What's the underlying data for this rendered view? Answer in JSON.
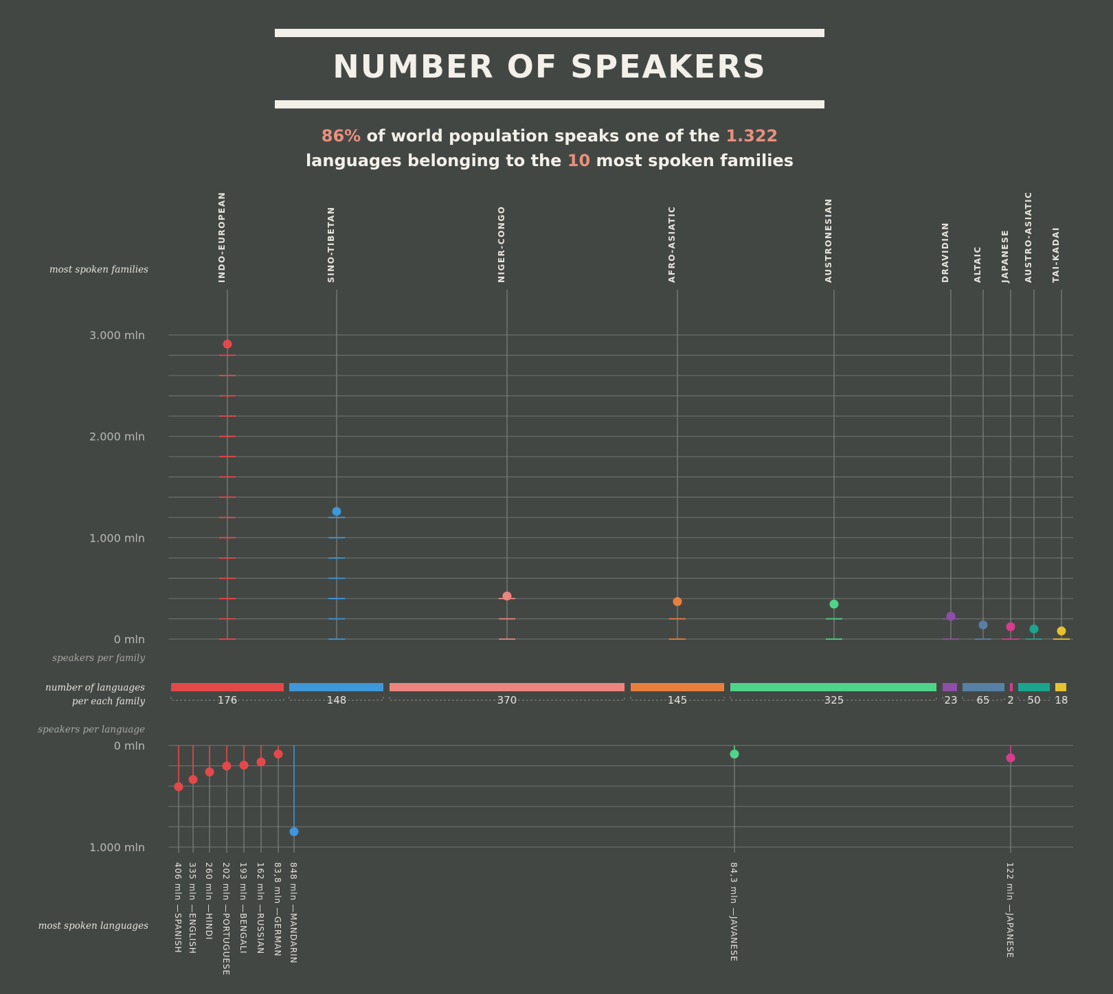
{
  "title": "NUMBER OF SPEAKERS",
  "subtitle": {
    "pct": "86%",
    "part1": " of world population speaks one of the ",
    "languages": "1.322",
    "part2": "languages belonging to the ",
    "families": "10",
    "part3": " most spoken families"
  },
  "labels": {
    "most_spoken_families": "most spoken families",
    "speakers_per_family": "speakers per family",
    "number_of_languages_line1": "number of languages",
    "number_of_languages_line2": "per each family",
    "speakers_per_language": "speakers per language",
    "most_spoken_languages": "most spoken languages"
  },
  "chart_data": {
    "type": "scatter",
    "title": "NUMBER OF SPEAKERS",
    "top_axis": {
      "ylabel": "speakers per family",
      "ylim": [
        0,
        3000
      ],
      "ticks": [
        {
          "value": 0,
          "label": "0 mln"
        },
        {
          "value": 1000,
          "label": "1.000 mln"
        },
        {
          "value": 2000,
          "label": "2.000 mln"
        },
        {
          "value": 3000,
          "label": "3.000 mln"
        }
      ]
    },
    "bottom_axis": {
      "ylabel": "speakers per language",
      "ylim": [
        0,
        1000
      ],
      "ticks": [
        {
          "value": 0,
          "label": "0 mln"
        },
        {
          "value": 1000,
          "label": "1.000 mln"
        }
      ]
    },
    "families": [
      {
        "name": "INDO-EUROPEAN",
        "speakers": 2910,
        "languages": 176,
        "color": "#e5484a"
      },
      {
        "name": "SINO-TIBETAN",
        "speakers": 1260,
        "languages": 148,
        "color": "#3d97d8"
      },
      {
        "name": "NIGER-CONGO",
        "speakers": 425,
        "languages": 370,
        "color": "#ec8480"
      },
      {
        "name": "AFRO-ASIATIC",
        "speakers": 370,
        "languages": 145,
        "color": "#e8803d"
      },
      {
        "name": "AUSTRONESIAN",
        "speakers": 345,
        "languages": 325,
        "color": "#4fd489"
      },
      {
        "name": "DRAVIDIAN",
        "speakers": 225,
        "languages": 23,
        "color": "#8d4fa8"
      },
      {
        "name": "ALTAIC",
        "speakers": 140,
        "languages": 65,
        "color": "#5880a5"
      },
      {
        "name": "JAPANESE",
        "speakers": 122,
        "languages": 2,
        "color": "#d73d8e"
      },
      {
        "name": "AUSTRO-ASIATIC",
        "speakers": 100,
        "languages": 50,
        "color": "#1ba58e"
      },
      {
        "name": "TAI-KADAI",
        "speakers": 80,
        "languages": 18,
        "color": "#e7c22f"
      }
    ],
    "languages": [
      {
        "name": "SPANISH",
        "speakers": 406,
        "label": "406 mln",
        "family": "INDO-EUROPEAN"
      },
      {
        "name": "ENGLISH",
        "speakers": 335,
        "label": "335 mln",
        "family": "INDO-EUROPEAN"
      },
      {
        "name": "HINDI",
        "speakers": 260,
        "label": "260 mln",
        "family": "INDO-EUROPEAN"
      },
      {
        "name": "PORTUGUESE",
        "speakers": 202,
        "label": "202 mln",
        "family": "INDO-EUROPEAN"
      },
      {
        "name": "BENGALI",
        "speakers": 193,
        "label": "193 mln",
        "family": "INDO-EUROPEAN"
      },
      {
        "name": "RUSSIAN",
        "speakers": 162,
        "label": "162 mln",
        "family": "INDO-EUROPEAN"
      },
      {
        "name": "GERMAN",
        "speakers": 83.8,
        "label": "83,8 mln",
        "family": "INDO-EUROPEAN"
      },
      {
        "name": "MANDARIN",
        "speakers": 848,
        "label": "848 mln",
        "family": "SINO-TIBETAN"
      },
      {
        "name": "JAVANESE",
        "speakers": 84.3,
        "label": "84,3 mln",
        "family": "AUSTRONESIAN"
      },
      {
        "name": "JAPANESE",
        "speakers": 122,
        "label": "122 mln",
        "family": "JAPANESE"
      }
    ]
  }
}
